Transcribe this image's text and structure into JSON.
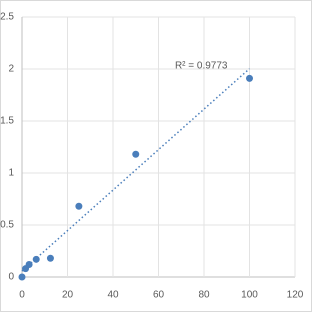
{
  "chart_data": {
    "type": "scatter",
    "series": [
      {
        "color": "#4a7ebb",
        "x": [
          0,
          1.56,
          3.125,
          6.25,
          12.5,
          25,
          50,
          100
        ],
        "values": [
          0.0,
          0.08,
          0.12,
          0.17,
          0.18,
          0.68,
          1.18,
          1.91
        ]
      }
    ],
    "xlim": [
      0,
      120
    ],
    "xticks": [
      0,
      20,
      40,
      60,
      80,
      100,
      120
    ],
    "ylim": [
      0,
      2.5
    ],
    "yticks": [
      0,
      0.5,
      1,
      1.5,
      2,
      2.5
    ],
    "grid": true,
    "trendline": "linear",
    "annotation": "R² = 0.9773"
  }
}
